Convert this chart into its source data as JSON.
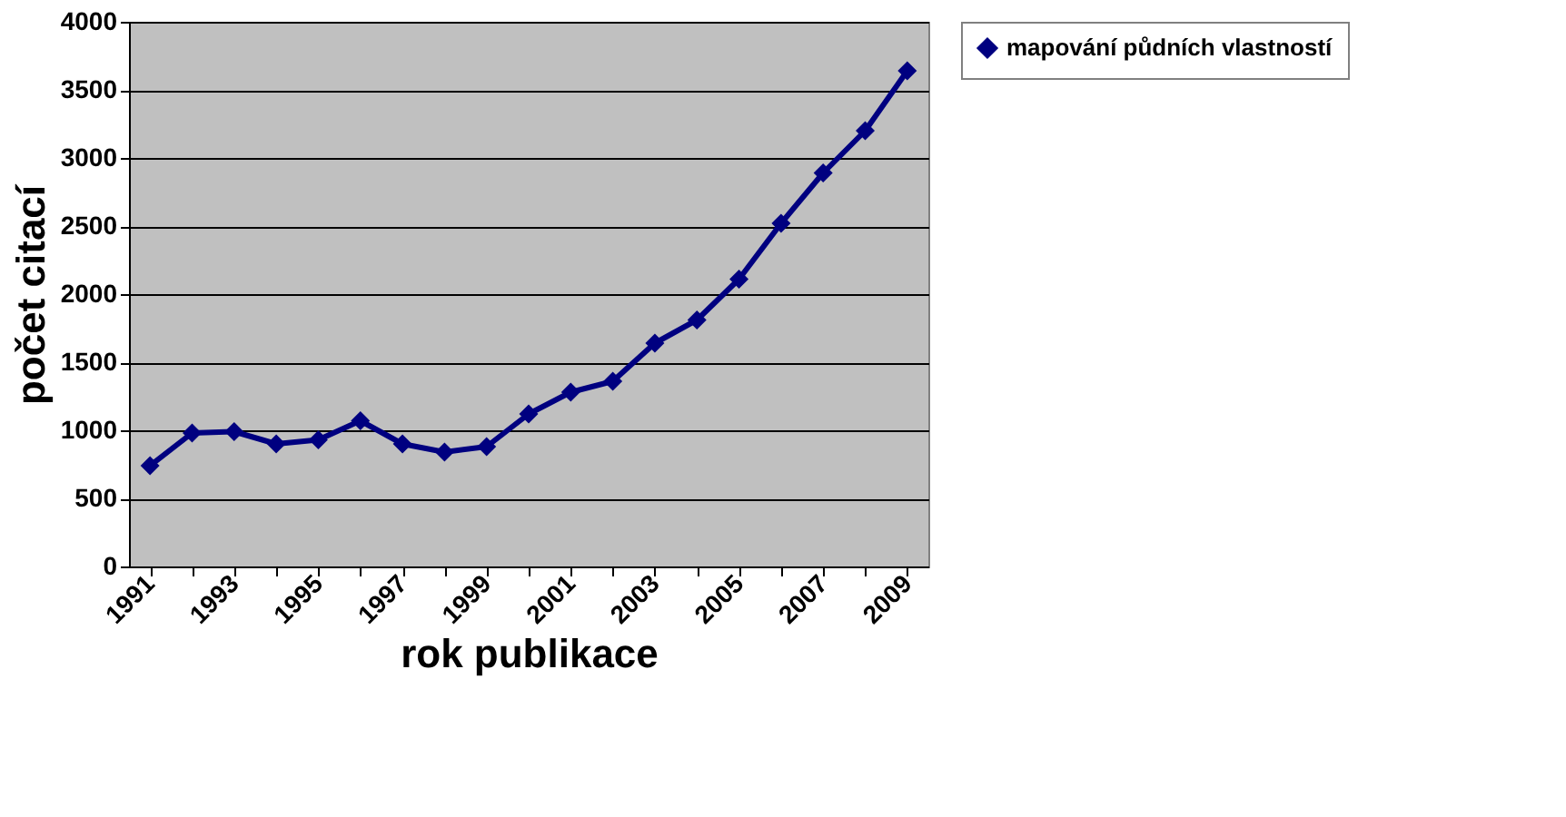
{
  "chart_data": {
    "type": "line",
    "xlabel": "rok publikace",
    "ylabel": "počet citací",
    "categories": [
      "1991",
      null,
      "1993",
      null,
      "1995",
      null,
      "1997",
      null,
      "1999",
      null,
      "2001",
      null,
      "2003",
      null,
      "2005",
      null,
      "2007",
      null,
      "2009"
    ],
    "series": [
      {
        "name": "mapování půdních vlastností",
        "color": "#000080",
        "values": [
          740,
          980,
          990,
          900,
          930,
          1070,
          900,
          840,
          880,
          1120,
          1280,
          1360,
          1640,
          1810,
          2110,
          2520,
          2890,
          3200,
          3640
        ]
      }
    ],
    "ylim": [
      0,
      4000
    ],
    "yticks": [
      0,
      500,
      1000,
      1500,
      2000,
      2500,
      3000,
      3500,
      4000
    ],
    "grid": "y",
    "legend": "right",
    "marker": "diamond",
    "line_style": "solid"
  }
}
